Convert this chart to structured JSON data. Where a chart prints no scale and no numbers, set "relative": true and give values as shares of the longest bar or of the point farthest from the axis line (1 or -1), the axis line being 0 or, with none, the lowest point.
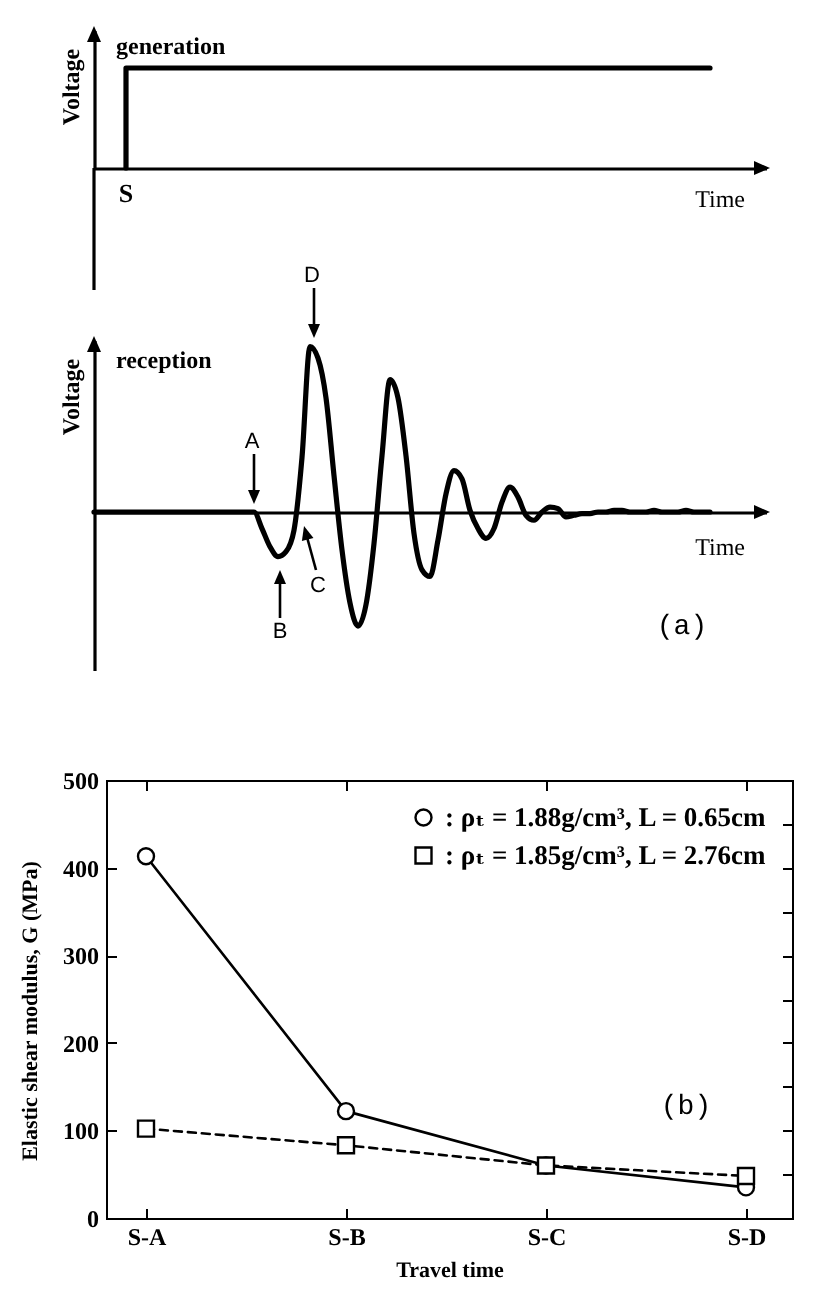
{
  "chart_data": [
    {
      "type": "step",
      "title": "generation",
      "xlabel": "Time",
      "ylabel": "Voltage",
      "relative": true,
      "color": "#000000",
      "categories": [
        null,
        null,
        null,
        null,
        null,
        null,
        null,
        null,
        null,
        null,
        null,
        null,
        null,
        null,
        null,
        null,
        null,
        null,
        null,
        null,
        null,
        null,
        null,
        null,
        null,
        null,
        null,
        null,
        null,
        null,
        null,
        null,
        null,
        null,
        null,
        null,
        null,
        null,
        null,
        null,
        null,
        null,
        null,
        null,
        null,
        null,
        null,
        null,
        null,
        null,
        null,
        null,
        null,
        null,
        null,
        null,
        null,
        null,
        null,
        null,
        null,
        null,
        null,
        null,
        null,
        null,
        null,
        null,
        null,
        null,
        null,
        null,
        null,
        null,
        null,
        null,
        null,
        null
      ],
      "values": [
        null,
        null,
        null,
        null,
        0,
        1,
        1,
        1,
        1,
        1,
        1,
        1,
        1,
        1,
        1,
        1,
        1,
        1,
        1,
        1,
        1,
        1,
        1,
        1,
        1,
        1,
        1,
        1,
        1,
        1,
        1,
        1,
        1,
        1,
        1,
        1,
        1,
        1,
        1,
        1,
        1,
        1,
        1,
        1,
        1,
        1,
        1,
        1,
        1,
        1,
        1,
        1,
        1,
        1,
        1,
        1,
        1,
        1,
        1,
        1,
        1,
        1,
        1,
        1,
        1,
        1,
        1,
        1,
        1,
        1,
        1,
        1,
        1,
        1,
        1,
        1,
        1,
        1
      ],
      "annotations": [
        "S"
      ]
    },
    {
      "type": "line",
      "title": "reception",
      "xlabel": "Time",
      "ylabel": "Voltage",
      "relative": true,
      "color": "#000000",
      "categories": [
        null,
        null,
        null,
        null,
        null,
        null,
        null,
        null,
        null,
        null,
        null,
        null,
        null,
        null,
        null,
        null,
        null,
        null,
        null,
        null,
        null,
        null,
        null,
        null,
        null,
        null,
        null,
        null,
        null,
        null,
        null,
        null,
        null,
        null,
        null,
        null,
        null,
        null,
        null,
        null,
        null,
        null,
        null,
        null,
        null,
        null,
        null,
        null,
        null,
        null,
        null,
        null,
        null,
        null,
        null,
        null,
        null,
        null,
        null,
        null,
        null,
        null,
        null,
        null,
        null,
        null,
        null,
        null,
        null,
        null,
        null,
        null,
        null,
        null,
        null,
        null,
        null,
        null
      ],
      "values": [
        0,
        0,
        0,
        0,
        0,
        0,
        0,
        0,
        0,
        0,
        0,
        0,
        0,
        0,
        0,
        0,
        0,
        0,
        0,
        0,
        0,
        -0.1,
        -0.21,
        -0.27,
        -0.24,
        -0.11,
        0.33,
        1,
        0.93,
        0.69,
        0.22,
        -0.23,
        -0.55,
        -0.69,
        -0.56,
        -0.19,
        0.34,
        0.8,
        0.69,
        0.34,
        -0.13,
        -0.35,
        -0.39,
        -0.17,
        0.11,
        0.25,
        0.2,
        0.01,
        -0.1,
        -0.16,
        -0.1,
        0.06,
        0.15,
        0.09,
        -0.02,
        -0.05,
        0,
        0.03,
        0.02,
        -0.03,
        -0.02,
        -0.01,
        -0.01,
        0,
        0,
        0.01,
        0.01,
        0,
        0,
        0,
        0.01,
        0,
        0,
        0,
        0.01,
        0,
        0,
        0
      ],
      "annotations": [
        "A",
        "B",
        "C",
        "D",
        "(a)"
      ]
    },
    {
      "type": "line",
      "xlabel": "Travel time",
      "ylabel": "Elastic shear modulus, G (MPa)",
      "categories": [
        "S-A",
        "S-B",
        "S-C",
        "S-D"
      ],
      "ylim": [
        0,
        500
      ],
      "yticks": [
        0,
        {
          "value": 50,
          "label": null
        },
        100,
        {
          "value": 150,
          "label": null
        },
        200,
        {
          "value": 250,
          "label": null
        },
        300,
        {
          "value": 350,
          "label": null
        },
        400,
        {
          "value": 450,
          "label": null
        },
        500
      ],
      "series": [
        {
          "name": ": ρₜ = 1.88g/cm³, L = 0.65cm",
          "color": "#000000",
          "marker": "circle",
          "line_style": "solid",
          "values": [
            413,
            122,
            60,
            35
          ]
        },
        {
          "name": ": ρₜ = 1.85g/cm³, L = 2.76cm",
          "color": "#000000",
          "marker": "square",
          "line_style": "dashed",
          "values": [
            102,
            83,
            60,
            48
          ]
        }
      ],
      "legend": "top right",
      "annotations": [
        "(b)"
      ]
    }
  ]
}
